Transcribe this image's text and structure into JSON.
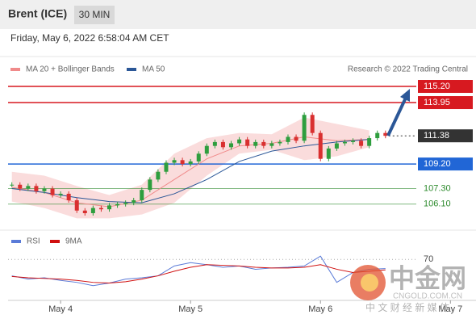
{
  "header": {
    "title": "Brent (ICE)",
    "interval": "30 MIN",
    "timestamp": "Friday, May 6, 2022 6:58:04 AM CET"
  },
  "chart_data": {
    "type": "candlestick",
    "source": "Research © 2022 Trading Central",
    "legend": [
      {
        "name": "MA 20 + Bollinger Bands",
        "color": "#f08a8a"
      },
      {
        "name": "MA 50",
        "color": "#2b5797"
      }
    ],
    "xlim": [
      -9.7,
      64.8
    ],
    "xticks": [
      {
        "value": 0,
        "label": "May 4"
      },
      {
        "value": 24,
        "label": "May 5"
      },
      {
        "value": 48,
        "label": "May 6"
      },
      {
        "value": 72,
        "label": "May 7"
      }
    ],
    "ylim": [
      104.4,
      115.95
    ],
    "x": [
      -9,
      -7.5,
      -6,
      -4.5,
      -3,
      -1.5,
      0,
      1.5,
      3,
      4.5,
      6,
      7.5,
      9,
      10.5,
      12,
      13.5,
      15,
      16.5,
      18,
      19.5,
      21,
      22.5,
      24,
      25.5,
      27,
      28.5,
      30,
      31.5,
      33,
      34.5,
      36,
      37.5,
      39,
      40.5,
      42,
      43.5,
      45,
      46.5,
      48,
      49.5,
      51,
      52.5,
      54,
      55.5,
      57,
      58.5,
      60
    ],
    "close": [
      107.6,
      107.3,
      107.5,
      107.1,
      107.3,
      106.8,
      106.9,
      106.4,
      105.6,
      105.4,
      105.8,
      105.7,
      106.0,
      106.1,
      106.2,
      106.4,
      107.2,
      108.0,
      108.6,
      109.3,
      109.5,
      109.2,
      109.4,
      110.0,
      110.6,
      110.9,
      110.5,
      110.8,
      111.1,
      110.6,
      110.9,
      110.6,
      110.8,
      110.9,
      111.3,
      111.0,
      113.0,
      111.6,
      109.6,
      110.4,
      110.8,
      110.9,
      111.0,
      110.6,
      111.2,
      111.6,
      111.38
    ],
    "up_color": "#2e9e3e",
    "down_color": "#d93030",
    "ma_x": [
      -9,
      -3,
      3,
      9,
      15,
      21,
      27,
      33,
      39,
      45,
      51,
      57
    ],
    "ma20": [
      107.4,
      107.0,
      106.2,
      105.9,
      106.4,
      108.0,
      109.6,
      110.6,
      110.8,
      111.3,
      111.0,
      111.1
    ],
    "ma50": [
      107.3,
      107.0,
      106.6,
      106.3,
      106.2,
      106.9,
      108.0,
      109.4,
      110.2,
      110.6,
      110.9,
      111.1
    ],
    "bb_upper": [
      108.6,
      108.3,
      107.5,
      106.8,
      107.6,
      110.0,
      111.2,
      111.6,
      111.5,
      112.8,
      112.3,
      111.8
    ],
    "bb_lower": [
      106.3,
      105.8,
      105.0,
      105.0,
      105.3,
      106.2,
      108.3,
      110.0,
      110.3,
      109.5,
      109.8,
      110.5
    ],
    "levels": [
      {
        "value": 115.2,
        "label": "115.20",
        "color": "#d71920",
        "boxed": true
      },
      {
        "value": 113.95,
        "label": "113.95",
        "color": "#d71920",
        "boxed": true
      },
      {
        "value": 111.38,
        "label": "111.38",
        "color": "#333333",
        "boxed": true,
        "dotted": true
      },
      {
        "value": 109.2,
        "label": "109.20",
        "color": "#2166d6",
        "boxed": true
      },
      {
        "value": 107.3,
        "label": "107.30",
        "color": "#2e8b2e",
        "boxed": false
      },
      {
        "value": 106.1,
        "label": "106.10",
        "color": "#2e8b2e",
        "boxed": false
      }
    ],
    "rsi_legend": [
      {
        "name": "RSI",
        "color": "#5a7bd8"
      },
      {
        "name": "9MA",
        "color": "#d01010"
      }
    ],
    "rsi_ylim": [
      10,
      90
    ],
    "rsi_yticks": [
      70
    ],
    "rsi_x": [
      -9,
      -6,
      -3,
      0,
      3,
      6,
      9,
      12,
      15,
      18,
      21,
      24,
      27,
      30,
      33,
      36,
      39,
      42,
      45,
      48,
      51,
      54,
      57,
      60
    ],
    "rsi": [
      45,
      40,
      42,
      38,
      35,
      30,
      34,
      40,
      42,
      45,
      60,
      65,
      62,
      58,
      60,
      55,
      57,
      58,
      60,
      75,
      35,
      50,
      55,
      56
    ],
    "rsi_ma": [
      44,
      42,
      41,
      40,
      38,
      35,
      34,
      36,
      40,
      45,
      52,
      58,
      62,
      61,
      60,
      58,
      57,
      57,
      58,
      62,
      55,
      50,
      52,
      54
    ]
  },
  "watermark": {
    "name": "中金网",
    "domain": "CNGOLD.COM.CN",
    "slogan": "中 文 财 经 新 媒 体"
  }
}
